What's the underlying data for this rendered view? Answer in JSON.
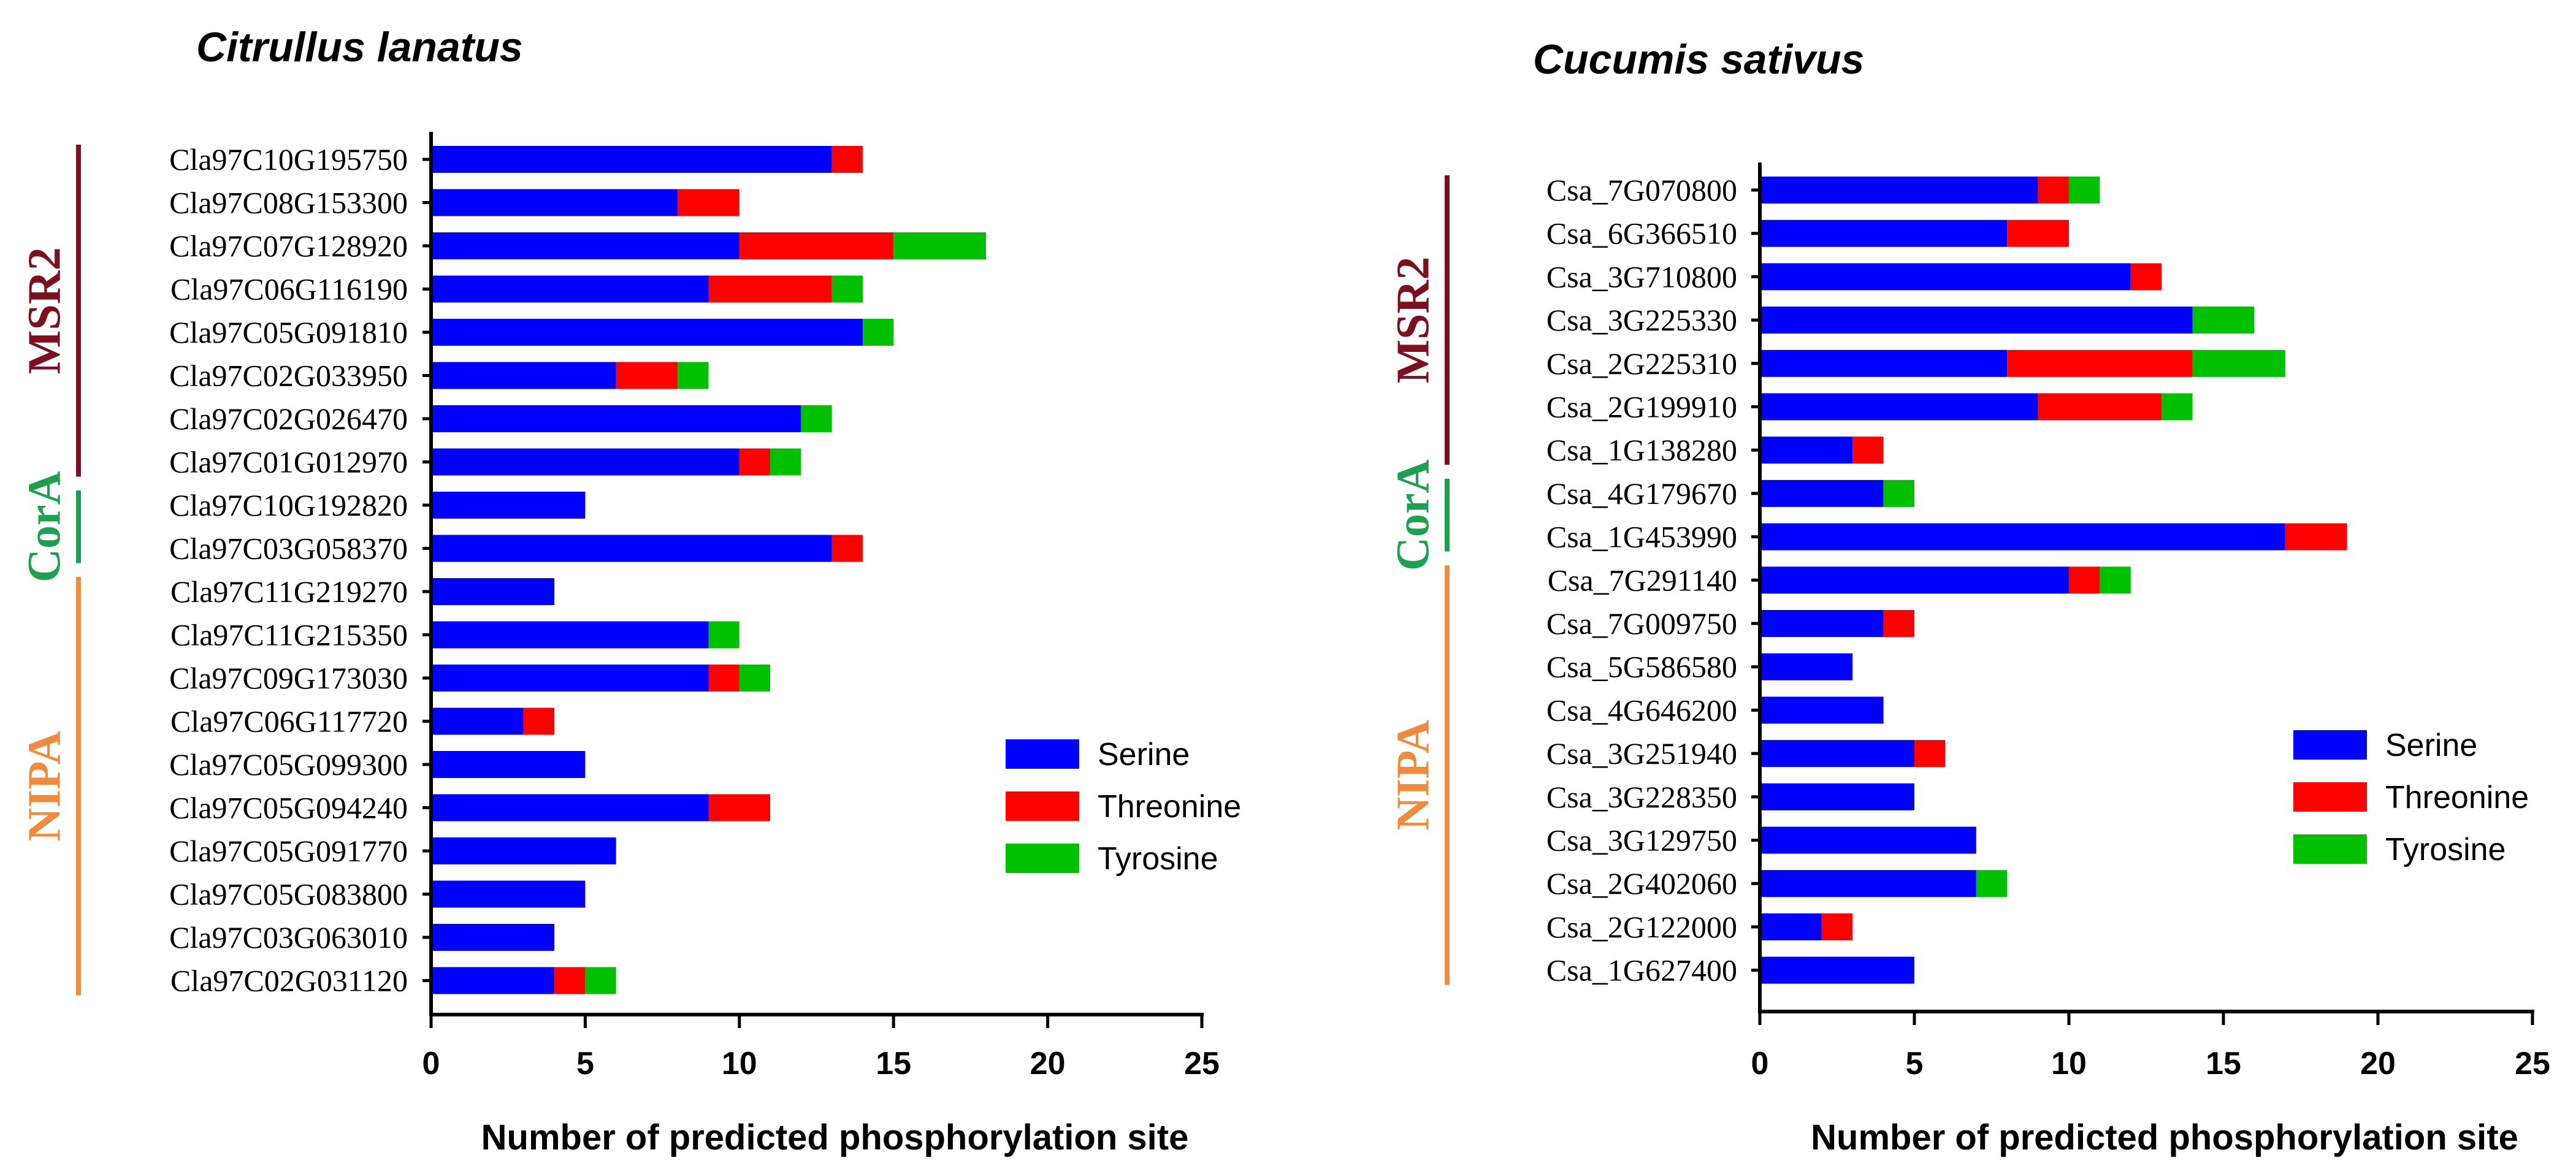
{
  "chart_data": [
    {
      "type": "bar",
      "orientation": "horizontal",
      "stacked": true,
      "title": "Citrullus lanatus",
      "xlabel": "Number of predicted phosphorylation site",
      "ylabel": "",
      "xlim": [
        0,
        25
      ],
      "xticks": [
        0,
        5,
        10,
        15,
        20,
        25
      ],
      "categories": [
        "Cla97C10G195750",
        "Cla97C08G153300",
        "Cla97C07G128920",
        "Cla97C06G116190",
        "Cla97C05G091810",
        "Cla97C02G033950",
        "Cla97C02G026470",
        "Cla97C01G012970",
        "Cla97C10G192820",
        "Cla97C03G058370",
        "Cla97C11G219270",
        "Cla97C11G215350",
        "Cla97C09G173030",
        "Cla97C06G117720",
        "Cla97C05G099300",
        "Cla97C05G094240",
        "Cla97C05G091770",
        "Cla97C05G083800",
        "Cla97C03G063010",
        "Cla97C02G031120"
      ],
      "series": [
        {
          "name": "Serine",
          "color": "#0000ff",
          "values": [
            13,
            8,
            10,
            9,
            14,
            6,
            12,
            10,
            5,
            13,
            4,
            9,
            9,
            3,
            5,
            9,
            6,
            5,
            4,
            4
          ]
        },
        {
          "name": "Threonine",
          "color": "#ff0000",
          "values": [
            1,
            2,
            5,
            4,
            0,
            2,
            0,
            1,
            0,
            1,
            0,
            0,
            1,
            1,
            0,
            2,
            0,
            0,
            0,
            1
          ]
        },
        {
          "name": "Tyrosine",
          "color": "#00c000",
          "values": [
            0,
            0,
            3,
            1,
            1,
            1,
            1,
            1,
            0,
            0,
            0,
            1,
            1,
            0,
            0,
            0,
            0,
            0,
            0,
            1
          ]
        }
      ],
      "groups": [
        {
          "name": "MSR2",
          "color": "#7b1020",
          "start": 0,
          "end": 7
        },
        {
          "name": "CorA",
          "color": "#1fa050",
          "start": 8,
          "end": 9
        },
        {
          "name": "NIPA",
          "color": "#f08a3c",
          "start": 10,
          "end": 19
        }
      ],
      "legend_position": "right"
    },
    {
      "type": "bar",
      "orientation": "horizontal",
      "stacked": true,
      "title": "Cucumis sativus",
      "xlabel": "Number of predicted phosphorylation site",
      "ylabel": "",
      "xlim": [
        0,
        25
      ],
      "xticks": [
        0,
        5,
        10,
        15,
        20,
        25
      ],
      "categories": [
        "Csa_7G070800",
        "Csa_6G366510",
        "Csa_3G710800",
        "Csa_3G225330",
        "Csa_2G225310",
        "Csa_2G199910",
        "Csa_1G138280",
        "Csa_4G179670",
        "Csa_1G453990",
        "Csa_7G291140",
        "Csa_7G009750",
        "Csa_5G586580",
        "Csa_4G646200",
        "Csa_3G251940",
        "Csa_3G228350",
        "Csa_3G129750",
        "Csa_2G402060",
        "Csa_2G122000",
        "Csa_1G627400"
      ],
      "series": [
        {
          "name": "Serine",
          "color": "#0000ff",
          "values": [
            9,
            8,
            12,
            14,
            8,
            9,
            3,
            4,
            17,
            10,
            4,
            3,
            4,
            5,
            5,
            7,
            7,
            2,
            5
          ]
        },
        {
          "name": "Threonine",
          "color": "#ff0000",
          "values": [
            1,
            2,
            1,
            0,
            6,
            4,
            1,
            0,
            2,
            1,
            1,
            0,
            0,
            1,
            0,
            0,
            0,
            1,
            0
          ]
        },
        {
          "name": "Tyrosine",
          "color": "#00c000",
          "values": [
            1,
            0,
            0,
            2,
            3,
            1,
            0,
            1,
            0,
            1,
            0,
            0,
            0,
            0,
            0,
            0,
            1,
            0,
            0
          ]
        }
      ],
      "groups": [
        {
          "name": "MSR2",
          "color": "#7b1020",
          "start": 0,
          "end": 6
        },
        {
          "name": "CorA",
          "color": "#1fa050",
          "start": 7,
          "end": 8
        },
        {
          "name": "NIPA",
          "color": "#f08a3c",
          "start": 9,
          "end": 18
        }
      ],
      "legend_position": "right"
    }
  ]
}
